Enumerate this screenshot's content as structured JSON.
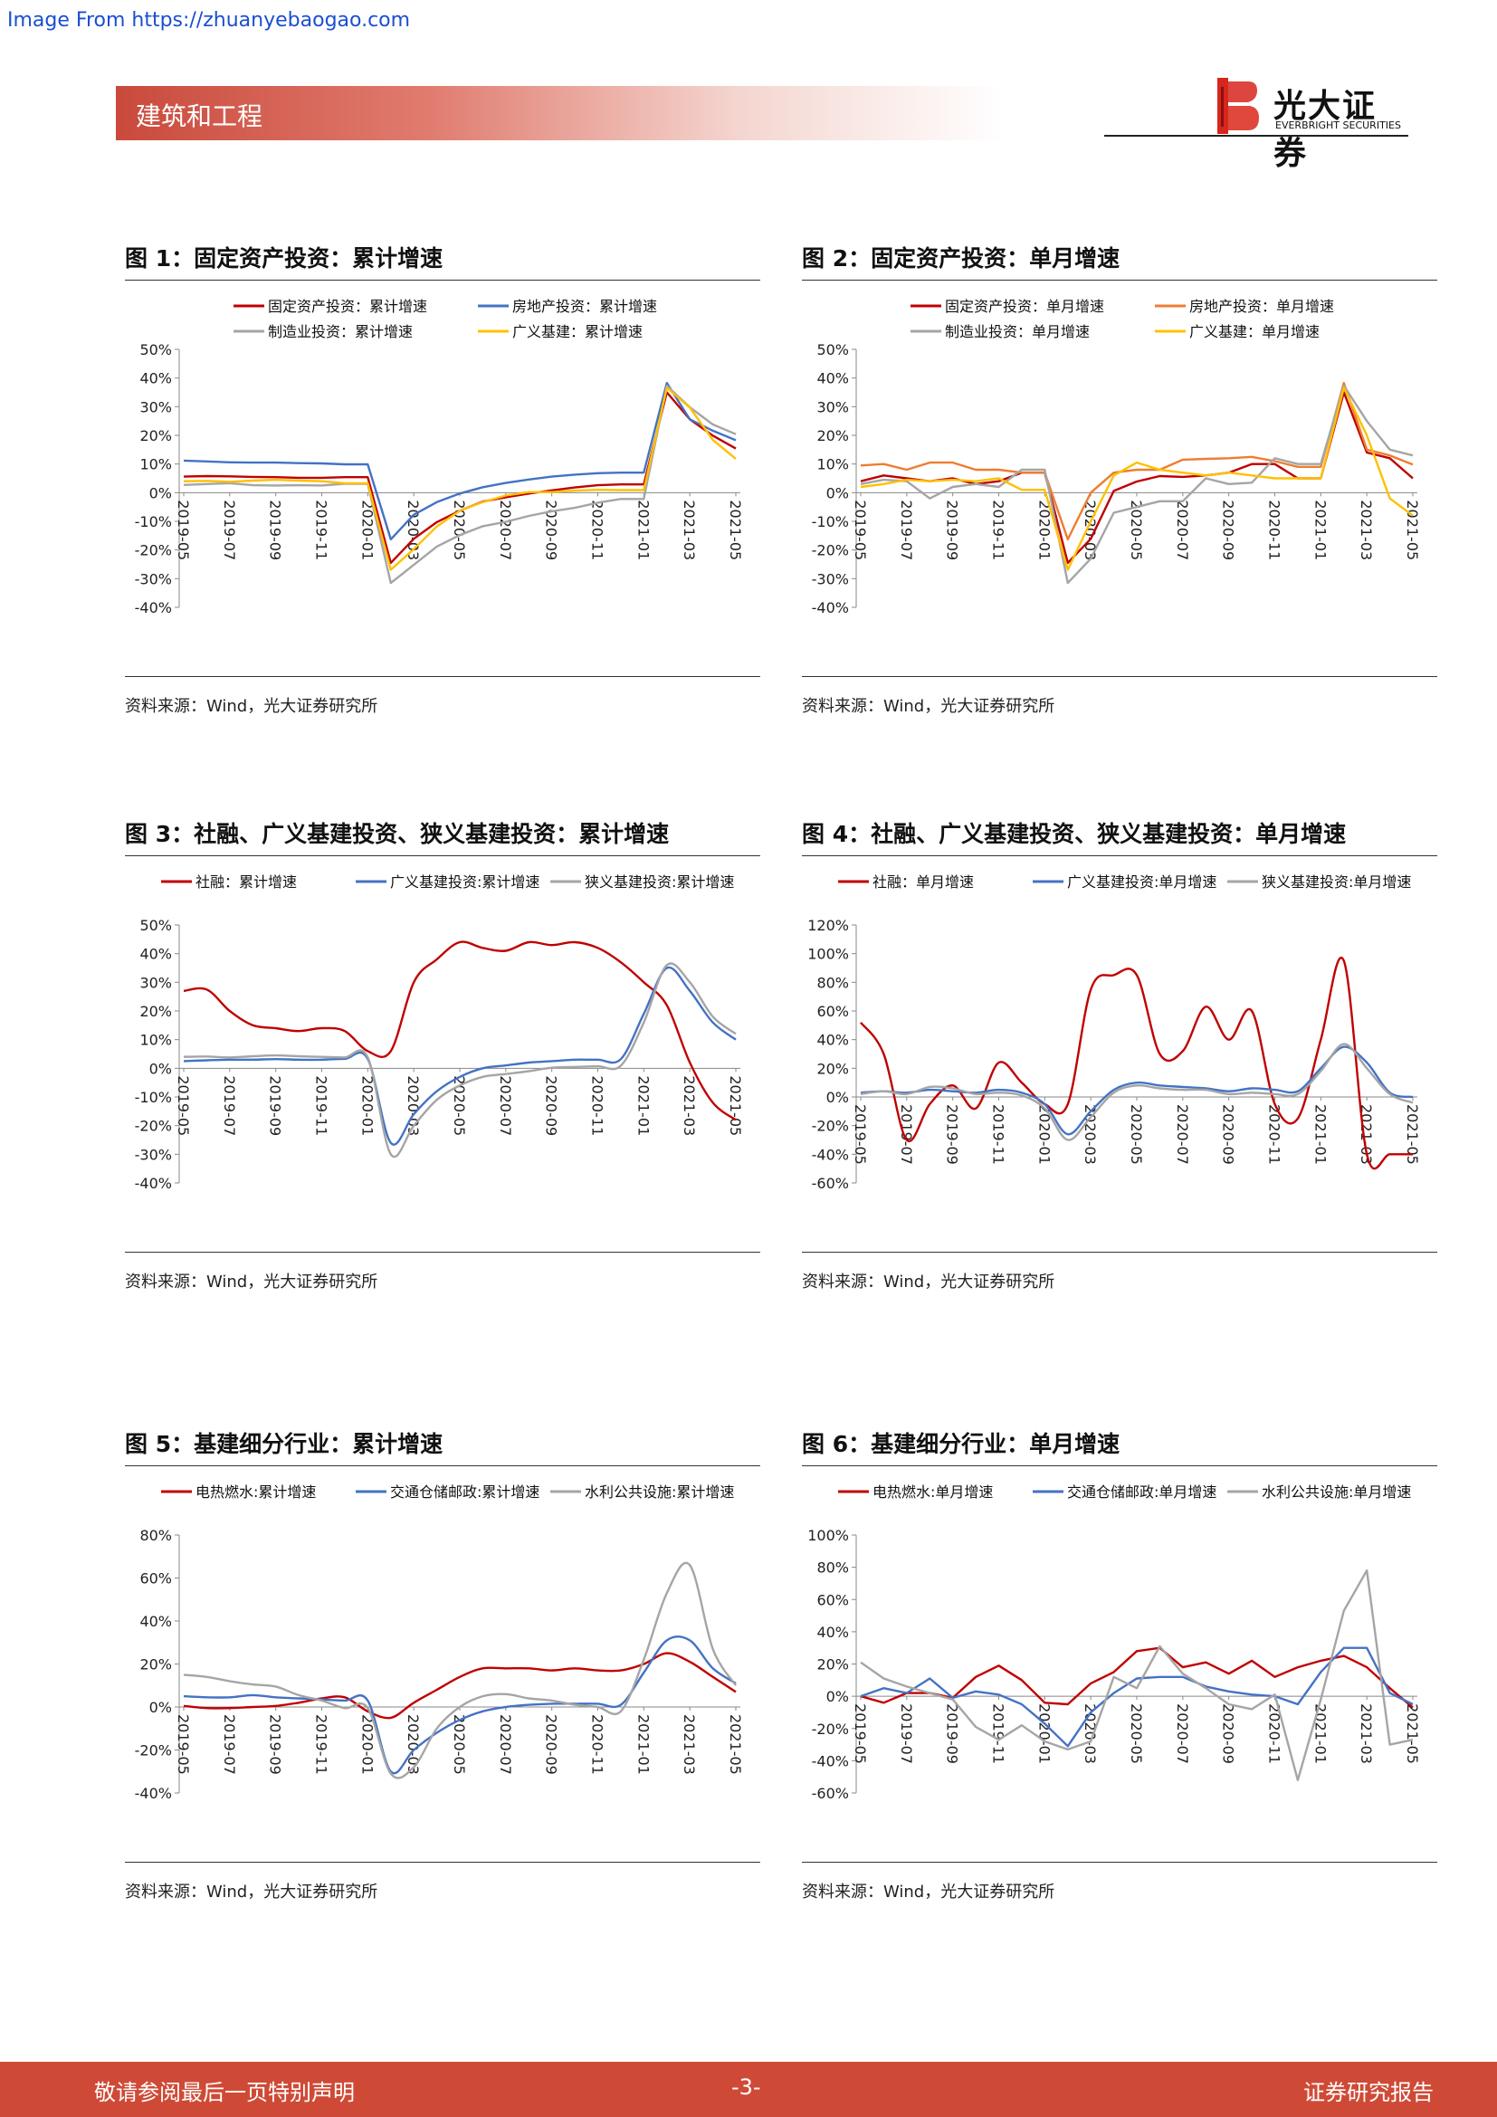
{
  "watermark": "Image From https://zhuanyebaogao.com",
  "header": {
    "section": "建筑和工程",
    "logo_cn": "光大证券",
    "logo_en": "EVERBRIGHT SECURITIES"
  },
  "footer": {
    "left": "敬请参阅最后一页特别声明",
    "page": "-3-",
    "right": "证券研究报告"
  },
  "colors": {
    "red": "#c00000",
    "blue": "#4472c4",
    "gray": "#a5a5a5",
    "orange": "#ed7d31",
    "gold": "#ffc000",
    "accent": "#cf4a36"
  },
  "charts": [
    {
      "title": "图 1：固定资产投资：累计增速",
      "source": "资料来源：Wind，光大证券研究所"
    },
    {
      "title": "图 2：固定资产投资：单月增速",
      "source": "资料来源：Wind，光大证券研究所"
    },
    {
      "title": "图 3：社融、广义基建投资、狭义基建投资：累计增速",
      "source": "资料来源：Wind，光大证券研究所"
    },
    {
      "title": "图 4：社融、广义基建投资、狭义基建投资：单月增速",
      "source": "资料来源：Wind，光大证券研究所"
    },
    {
      "title": "图 5：基建细分行业：累计增速",
      "source": "资料来源：Wind，光大证券研究所"
    },
    {
      "title": "图 6：基建细分行业：单月增速",
      "source": "资料来源：Wind，光大证券研究所"
    }
  ],
  "chart_data": [
    {
      "type": "line",
      "x": [
        "2019-05",
        "2019-06",
        "2019-07",
        "2019-08",
        "2019-09",
        "2019-10",
        "2019-11",
        "2019-12",
        "2020-01",
        "2020-02",
        "2020-03",
        "2020-04",
        "2020-05",
        "2020-06",
        "2020-07",
        "2020-08",
        "2020-09",
        "2020-10",
        "2020-11",
        "2020-12",
        "2021-01",
        "2021-02",
        "2021-03",
        "2021-04",
        "2021-05"
      ],
      "xticks": [
        "2019-05",
        "2019-07",
        "2019-09",
        "2019-11",
        "2020-01",
        "2020-03",
        "2020-05",
        "2020-07",
        "2020-09",
        "2020-11",
        "2021-01",
        "2021-03",
        "2021-05"
      ],
      "ylim": [
        -40,
        50
      ],
      "yticks": [
        -40,
        -30,
        -20,
        -10,
        0,
        10,
        20,
        30,
        40,
        50
      ],
      "legend_layout": "2x2",
      "series": [
        {
          "name": "固定资产投资：累计增速",
          "color": "#c00000",
          "values": [
            5.6,
            5.8,
            5.7,
            5.5,
            5.4,
            5.2,
            5.2,
            5.4,
            5.4,
            -24.5,
            -16.1,
            -10.3,
            -6.3,
            -3.1,
            -1.6,
            -0.3,
            0.8,
            1.8,
            2.6,
            2.9,
            2.9,
            35.0,
            25.6,
            19.9,
            15.4
          ]
        },
        {
          "name": "房地产投资：累计增速",
          "color": "#4472c4",
          "values": [
            11.2,
            10.9,
            10.6,
            10.5,
            10.5,
            10.3,
            10.2,
            9.9,
            9.9,
            -16.3,
            -7.7,
            -3.3,
            -0.3,
            1.9,
            3.4,
            4.6,
            5.6,
            6.3,
            6.8,
            7.0,
            7.0,
            38.3,
            25.6,
            21.6,
            18.3
          ]
        },
        {
          "name": "制造业投资：累计增速",
          "color": "#a5a5a5",
          "values": [
            2.7,
            3.0,
            3.3,
            2.6,
            2.5,
            2.6,
            2.5,
            3.1,
            3.1,
            -31.5,
            -25.2,
            -18.8,
            -14.8,
            -11.7,
            -10.2,
            -8.1,
            -6.5,
            -5.3,
            -3.5,
            -2.2,
            -2.2,
            37.3,
            29.8,
            23.8,
            20.4
          ]
        },
        {
          "name": "广义基建：累计增速",
          "color": "#ffc000",
          "values": [
            4.0,
            4.1,
            3.8,
            4.2,
            4.5,
            4.2,
            4.0,
            3.3,
            3.3,
            -26.9,
            -19.7,
            -11.8,
            -6.3,
            -3.3,
            -1.0,
            0.2,
            0.2,
            0.7,
            1.0,
            0.9,
            0.9,
            36.6,
            29.7,
            18.4,
            11.8
          ]
        }
      ]
    },
    {
      "type": "line",
      "x": [
        "2019-05",
        "2019-06",
        "2019-07",
        "2019-08",
        "2019-09",
        "2019-10",
        "2019-11",
        "2019-12",
        "2020-01",
        "2020-02",
        "2020-03",
        "2020-04",
        "2020-05",
        "2020-06",
        "2020-07",
        "2020-08",
        "2020-09",
        "2020-10",
        "2020-11",
        "2020-12",
        "2021-01",
        "2021-02",
        "2021-03",
        "2021-04",
        "2021-05"
      ],
      "xticks": [
        "2019-05",
        "2019-07",
        "2019-09",
        "2019-11",
        "2020-01",
        "2020-03",
        "2020-05",
        "2020-07",
        "2020-09",
        "2020-11",
        "2021-01",
        "2021-03",
        "2021-05"
      ],
      "ylim": [
        -40,
        50
      ],
      "yticks": [
        -40,
        -30,
        -20,
        -10,
        0,
        10,
        20,
        30,
        40,
        50
      ],
      "legend_layout": "2x2",
      "series": [
        {
          "name": "固定资产投资：单月增速",
          "color": "#c00000",
          "values": [
            4.0,
            6.0,
            5.0,
            4.0,
            5.0,
            3.0,
            4.0,
            7.0,
            7.0,
            -24.5,
            -16.1,
            0.6,
            3.9,
            5.8,
            5.5,
            6.0,
            7.0,
            10.0,
            10.0,
            5.0,
            5.0,
            35.0,
            14.0,
            12.0,
            5.0
          ]
        },
        {
          "name": "房地产投资：单月增速",
          "color": "#ed7d31",
          "values": [
            9.5,
            10.0,
            8.0,
            10.5,
            10.5,
            8.0,
            8.0,
            7.0,
            7.0,
            -16.3,
            0.0,
            7.0,
            8.0,
            8.0,
            11.5,
            11.8,
            12.0,
            12.5,
            11.0,
            9.0,
            9.0,
            38.3,
            15.0,
            13.0,
            9.8
          ]
        },
        {
          "name": "制造业投资：单月增速",
          "color": "#a5a5a5",
          "values": [
            3.0,
            4.5,
            4.0,
            -2.0,
            2.0,
            3.0,
            2.0,
            8.0,
            8.0,
            -31.5,
            -23.0,
            -7.0,
            -5.0,
            -3.0,
            -3.0,
            5.0,
            3.0,
            3.5,
            12.0,
            10.0,
            10.0,
            37.3,
            25.0,
            15.0,
            13.0
          ]
        },
        {
          "name": "广义基建：单月增速",
          "color": "#ffc000",
          "values": [
            2.0,
            3.0,
            4.5,
            4.0,
            4.5,
            4.0,
            5.0,
            1.0,
            1.0,
            -26.9,
            -10.0,
            6.0,
            10.5,
            8.0,
            7.0,
            6.0,
            7.0,
            6.0,
            5.0,
            5.0,
            5.0,
            36.6,
            20.0,
            -2.0,
            -8.0
          ]
        }
      ]
    },
    {
      "type": "line",
      "smooth": true,
      "x": [
        "2019-05",
        "2019-06",
        "2019-07",
        "2019-08",
        "2019-09",
        "2019-10",
        "2019-11",
        "2019-12",
        "2020-01",
        "2020-02",
        "2020-03",
        "2020-04",
        "2020-05",
        "2020-06",
        "2020-07",
        "2020-08",
        "2020-09",
        "2020-10",
        "2020-11",
        "2020-12",
        "2021-01",
        "2021-02",
        "2021-03",
        "2021-04",
        "2021-05"
      ],
      "xticks": [
        "2019-05",
        "2019-07",
        "2019-09",
        "2019-11",
        "2020-01",
        "2020-03",
        "2020-05",
        "2020-07",
        "2020-09",
        "2020-11",
        "2021-01",
        "2021-03",
        "2021-05"
      ],
      "ylim": [
        -40,
        50
      ],
      "yticks": [
        -40,
        -30,
        -20,
        -10,
        0,
        10,
        20,
        30,
        40,
        50
      ],
      "legend_layout": "1x3",
      "series": [
        {
          "name": "社融：累计增速",
          "color": "#c00000",
          "values": [
            27.0,
            27.5,
            20.0,
            15.0,
            14.0,
            13.0,
            14.0,
            13.0,
            6.0,
            6.0,
            30.0,
            38.0,
            44.0,
            42.0,
            41.0,
            44.0,
            43.0,
            44.0,
            42.0,
            37.0,
            30.0,
            22.0,
            2.0,
            -12.0,
            -18.0
          ]
        },
        {
          "name": "广义基建投资:累计增速",
          "color": "#4472c4",
          "values": [
            2.5,
            2.8,
            3.0,
            3.0,
            3.2,
            3.0,
            3.0,
            3.3,
            3.3,
            -26.0,
            -16.0,
            -8.0,
            -3.0,
            0.0,
            1.0,
            2.0,
            2.5,
            3.0,
            3.0,
            3.2,
            19.0,
            35.0,
            27.0,
            16.0,
            10.0
          ]
        },
        {
          "name": "狭义基建投资:累计增速",
          "color": "#a5a5a5",
          "values": [
            4.0,
            4.1,
            3.8,
            4.2,
            4.5,
            4.2,
            4.0,
            3.8,
            3.8,
            -30.0,
            -20.0,
            -11.0,
            -6.0,
            -3.0,
            -2.0,
            -1.0,
            0.2,
            0.5,
            0.7,
            0.9,
            16.0,
            36.0,
            30.0,
            18.0,
            12.0
          ]
        }
      ]
    },
    {
      "type": "line",
      "smooth": true,
      "x": [
        "2019-05",
        "2019-06",
        "2019-07",
        "2019-08",
        "2019-09",
        "2019-10",
        "2019-11",
        "2019-12",
        "2020-01",
        "2020-02",
        "2020-03",
        "2020-04",
        "2020-05",
        "2020-06",
        "2020-07",
        "2020-08",
        "2020-09",
        "2020-10",
        "2020-11",
        "2020-12",
        "2021-01",
        "2021-02",
        "2021-03",
        "2021-04",
        "2021-05"
      ],
      "xticks": [
        "2019-05",
        "2019-07",
        "2019-09",
        "2019-11",
        "2020-01",
        "2020-03",
        "2020-05",
        "2020-07",
        "2020-09",
        "2020-11",
        "2021-01",
        "2021-03",
        "2021-05"
      ],
      "ylim": [
        -60,
        120
      ],
      "yticks": [
        -60,
        -40,
        -20,
        0,
        20,
        40,
        60,
        80,
        100,
        120
      ],
      "legend_layout": "1x3",
      "series": [
        {
          "name": "社融：单月增速",
          "color": "#c00000",
          "values": [
            52.0,
            30.0,
            -30.0,
            -5.0,
            8.0,
            -8.0,
            24.0,
            10.0,
            -5.0,
            -5.0,
            75.0,
            85.0,
            85.0,
            30.0,
            32.0,
            63.0,
            40.0,
            60.0,
            -5.0,
            -15.0,
            40.0,
            95.0,
            -40.0,
            -40.0,
            -40.0
          ]
        },
        {
          "name": "广义基建投资:单月增速",
          "color": "#4472c4",
          "values": [
            3.0,
            4.0,
            3.0,
            5.0,
            4.0,
            3.0,
            5.0,
            3.0,
            -5.0,
            -26.0,
            -10.0,
            5.0,
            10.0,
            8.0,
            7.0,
            6.0,
            4.0,
            6.0,
            5.0,
            4.0,
            20.0,
            35.0,
            24.0,
            3.0,
            0.0
          ]
        },
        {
          "name": "狭义基建投资:单月增速",
          "color": "#a5a5a5",
          "values": [
            2.0,
            4.0,
            2.0,
            7.0,
            6.0,
            2.0,
            3.0,
            1.0,
            -8.0,
            -30.0,
            -14.0,
            3.0,
            8.0,
            6.0,
            5.0,
            5.0,
            2.0,
            3.0,
            2.0,
            2.0,
            18.0,
            37.0,
            20.0,
            2.0,
            -4.0
          ]
        }
      ]
    },
    {
      "type": "line",
      "smooth": true,
      "x": [
        "2019-05",
        "2019-06",
        "2019-07",
        "2019-08",
        "2019-09",
        "2019-10",
        "2019-11",
        "2019-12",
        "2020-01",
        "2020-02",
        "2020-03",
        "2020-04",
        "2020-05",
        "2020-06",
        "2020-07",
        "2020-08",
        "2020-09",
        "2020-10",
        "2020-11",
        "2020-12",
        "2021-01",
        "2021-02",
        "2021-03",
        "2021-04",
        "2021-05"
      ],
      "xticks": [
        "2019-05",
        "2019-07",
        "2019-09",
        "2019-11",
        "2020-01",
        "2020-03",
        "2020-05",
        "2020-07",
        "2020-09",
        "2020-11",
        "2021-01",
        "2021-03",
        "2021-05"
      ],
      "ylim": [
        -40,
        80
      ],
      "yticks": [
        -40,
        -20,
        0,
        20,
        40,
        60,
        80
      ],
      "legend_layout": "1x3",
      "series": [
        {
          "name": "电热燃水:累计增速",
          "color": "#c00000",
          "values": [
            0.5,
            -0.5,
            -0.5,
            0.0,
            0.5,
            2.0,
            4.0,
            4.5,
            -2.0,
            -5.0,
            2.0,
            8.0,
            14.0,
            18.0,
            18.0,
            18.0,
            17.0,
            18.0,
            17.0,
            17.0,
            20.0,
            25.0,
            21.0,
            14.0,
            7.0
          ]
        },
        {
          "name": "交通仓储邮政:累计增速",
          "color": "#4472c4",
          "values": [
            5.0,
            4.5,
            4.5,
            5.5,
            4.5,
            4.0,
            3.5,
            3.0,
            3.0,
            -30.0,
            -20.0,
            -12.0,
            -6.0,
            -2.0,
            0.0,
            1.0,
            1.5,
            1.5,
            1.5,
            1.0,
            16.0,
            31.0,
            31.0,
            18.0,
            11.0
          ]
        },
        {
          "name": "水利公共设施:累计增速",
          "color": "#a5a5a5",
          "values": [
            15.0,
            14.0,
            12.0,
            10.5,
            9.5,
            5.5,
            3.0,
            -0.5,
            -0.5,
            -31.0,
            -28.0,
            -10.0,
            0.0,
            5.0,
            6.0,
            4.0,
            3.0,
            1.0,
            0.0,
            -2.0,
            22.0,
            53.0,
            66.0,
            27.0,
            10.0
          ]
        }
      ]
    },
    {
      "type": "line",
      "x": [
        "2019-05",
        "2019-06",
        "2019-07",
        "2019-08",
        "2019-09",
        "2019-10",
        "2019-11",
        "2019-12",
        "2020-01",
        "2020-02",
        "2020-03",
        "2020-04",
        "2020-05",
        "2020-06",
        "2020-07",
        "2020-08",
        "2020-09",
        "2020-10",
        "2020-11",
        "2020-12",
        "2021-01",
        "2021-02",
        "2021-03",
        "2021-04",
        "2021-05"
      ],
      "xticks": [
        "2019-05",
        "2019-07",
        "2019-09",
        "2019-11",
        "2020-01",
        "2020-03",
        "2020-05",
        "2020-07",
        "2020-09",
        "2020-11",
        "2021-01",
        "2021-03",
        "2021-05"
      ],
      "ylim": [
        -60,
        100
      ],
      "yticks": [
        -60,
        -40,
        -20,
        0,
        20,
        40,
        60,
        80,
        100
      ],
      "legend_layout": "1x3",
      "series": [
        {
          "name": "电热燃水:单月增速",
          "color": "#c00000",
          "values": [
            0.0,
            -4.0,
            2.0,
            2.0,
            -1.0,
            12.0,
            19.0,
            10.0,
            -4.0,
            -5.0,
            8.0,
            15.0,
            28.0,
            30.0,
            18.0,
            21.0,
            14.0,
            22.0,
            12.0,
            18.0,
            22.0,
            25.0,
            18.0,
            5.0,
            -7.0
          ]
        },
        {
          "name": "交通仓储邮政:单月增速",
          "color": "#4472c4",
          "values": [
            0.0,
            5.0,
            2.0,
            11.0,
            -1.0,
            3.0,
            1.0,
            -5.0,
            -17.0,
            -31.0,
            -10.0,
            2.0,
            11.0,
            12.0,
            12.0,
            6.0,
            3.0,
            1.0,
            0.0,
            -5.0,
            15.0,
            30.0,
            30.0,
            2.0,
            -5.0
          ]
        },
        {
          "name": "水利公共设施:单月增速",
          "color": "#a5a5a5",
          "values": [
            21.0,
            11.0,
            6.0,
            2.0,
            -2.0,
            -19.0,
            -27.0,
            -18.0,
            -28.0,
            -33.0,
            -28.0,
            12.0,
            5.0,
            31.0,
            14.0,
            5.0,
            -5.0,
            -8.0,
            1.0,
            -52.0,
            -2.0,
            53.0,
            78.0,
            -30.0,
            -27.0
          ]
        }
      ]
    }
  ]
}
